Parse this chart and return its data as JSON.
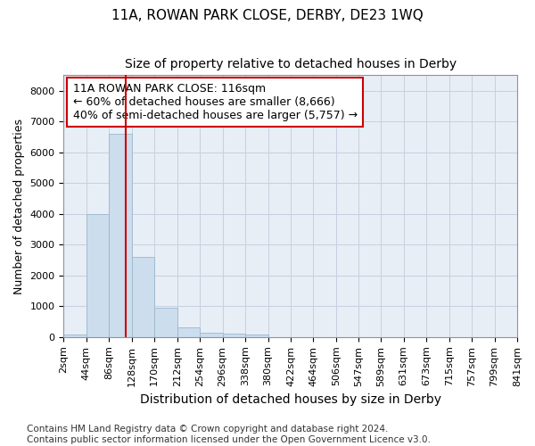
{
  "title": "11A, ROWAN PARK CLOSE, DERBY, DE23 1WQ",
  "subtitle": "Size of property relative to detached houses in Derby",
  "xlabel": "Distribution of detached houses by size in Derby",
  "ylabel": "Number of detached properties",
  "bar_color": "#ccdded",
  "bar_edge_color": "#9ab8cc",
  "grid_color": "#c8d0e0",
  "background_color": "#e8eef6",
  "vline_x": 116,
  "vline_color": "#cc0000",
  "annotation_text": "11A ROWAN PARK CLOSE: 116sqm\n← 60% of detached houses are smaller (8,666)\n40% of semi-detached houses are larger (5,757) →",
  "annotation_box_color": "#cc0000",
  "bin_edges": [
    2,
    44,
    86,
    128,
    170,
    212,
    254,
    296,
    338,
    380,
    422,
    464,
    506,
    547,
    589,
    631,
    673,
    715,
    757,
    799,
    841
  ],
  "bin_values": [
    75,
    4000,
    6600,
    2600,
    950,
    300,
    130,
    100,
    90,
    0,
    0,
    0,
    0,
    0,
    0,
    0,
    0,
    0,
    0,
    0
  ],
  "ylim": [
    0,
    8500
  ],
  "yticks": [
    0,
    1000,
    2000,
    3000,
    4000,
    5000,
    6000,
    7000,
    8000
  ],
  "footnote": "Contains HM Land Registry data © Crown copyright and database right 2024.\nContains public sector information licensed under the Open Government Licence v3.0.",
  "title_fontsize": 11,
  "subtitle_fontsize": 10,
  "xlabel_fontsize": 10,
  "ylabel_fontsize": 9,
  "tick_fontsize": 8,
  "annotation_fontsize": 9,
  "footnote_fontsize": 7.5
}
